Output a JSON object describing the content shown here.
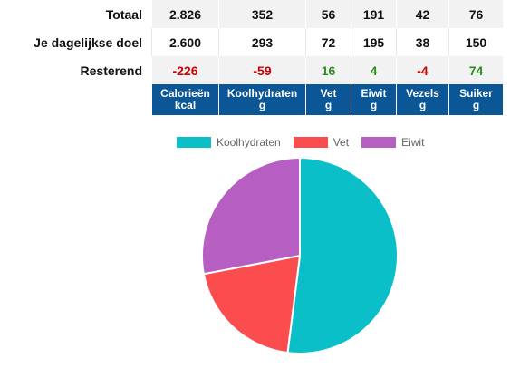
{
  "rows": [
    {
      "label": "Totaal",
      "values": [
        "2.826",
        "352",
        "56",
        "191",
        "42",
        "76"
      ]
    },
    {
      "label": "Je dagelijkse doel",
      "values": [
        "2.600",
        "293",
        "72",
        "195",
        "38",
        "150"
      ]
    },
    {
      "label": "Resterend",
      "values": [
        "-226",
        "-59",
        "16",
        "4",
        "-4",
        "74"
      ]
    }
  ],
  "columns": [
    {
      "name": "Calorieën",
      "unit": "kcal"
    },
    {
      "name": "Koolhydraten",
      "unit": "g"
    },
    {
      "name": "Vet",
      "unit": "g"
    },
    {
      "name": "Eiwit",
      "unit": "g"
    },
    {
      "name": "Vezels",
      "unit": "g"
    },
    {
      "name": "Suiker",
      "unit": "g"
    }
  ],
  "colors": {
    "header_bg": "#0a5697",
    "negative": "#cc0000",
    "positive": "#2e8b1f"
  },
  "chart_data": {
    "type": "pie",
    "labels": [
      "Koolhydraten",
      "Vet",
      "Eiwit"
    ],
    "values": [
      52,
      20,
      28
    ],
    "colors": [
      "#0bbfc9",
      "#fb4d4d",
      "#b65ec2"
    ],
    "legend_position": "top"
  }
}
